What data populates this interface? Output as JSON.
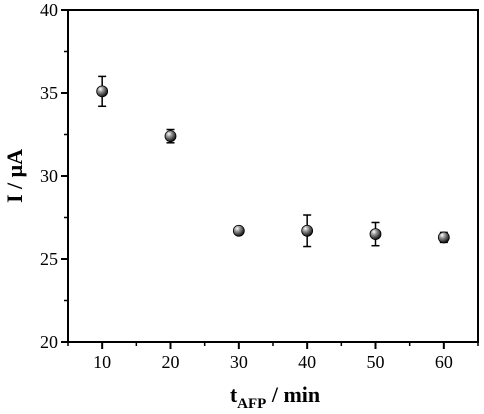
{
  "chart_data": {
    "type": "scatter",
    "xlabel_main": "t",
    "xlabel_sub": "AFP",
    "xlabel_rest": " / min",
    "ylabel": "I / μA",
    "xlim": [
      5,
      65
    ],
    "ylim": [
      20,
      40
    ],
    "x_ticks": [
      10,
      20,
      30,
      40,
      50,
      60
    ],
    "y_ticks": [
      20,
      25,
      30,
      35,
      40
    ],
    "grid": false,
    "series": [
      {
        "x": [
          10,
          20,
          30,
          40,
          50,
          60
        ],
        "y": [
          35.1,
          32.4,
          26.7,
          26.7,
          26.5,
          26.3
        ],
        "error": [
          0.9,
          0.4,
          0.15,
          0.95,
          0.7,
          0.3
        ]
      }
    ]
  }
}
